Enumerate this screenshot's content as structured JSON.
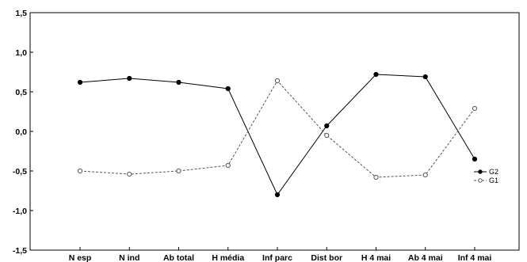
{
  "chart_data": {
    "type": "line",
    "categories": [
      "N esp",
      "N ind",
      "Ab total",
      "H média",
      "Inf parc",
      "Dist bor",
      "H 4 mai",
      "Ab 4 mai",
      "Inf 4 mai"
    ],
    "series": [
      {
        "name": "G2",
        "values": [
          0.62,
          0.67,
          0.62,
          0.54,
          -0.8,
          0.07,
          0.72,
          0.69,
          -0.35
        ],
        "style": "solid",
        "marker": "filled-circle",
        "color": "#000000"
      },
      {
        "name": "G1",
        "values": [
          -0.5,
          -0.54,
          -0.5,
          -0.43,
          0.64,
          -0.05,
          -0.58,
          -0.55,
          0.29
        ],
        "style": "dashed",
        "marker": "open-circle",
        "color": "#555555"
      }
    ],
    "ylim": [
      -1.5,
      1.5
    ],
    "yticks": [
      "1,5",
      "1,0",
      "0,5",
      "0,0",
      "-0,5",
      "-1,0",
      "-1,5"
    ],
    "title": "",
    "xlabel": "",
    "ylabel": "",
    "grid": false,
    "legend_position": "right"
  }
}
